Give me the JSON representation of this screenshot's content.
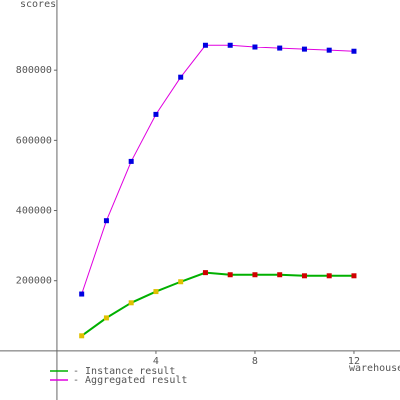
{
  "chart_data": {
    "type": "line",
    "y_label": "scores",
    "x_label": "warehouses",
    "x": [
      1,
      2,
      3,
      4,
      5,
      6,
      7,
      8,
      9,
      10,
      11,
      12
    ],
    "series": [
      {
        "name": "- Instance result",
        "color": "#00b000",
        "marker_colors": [
          "#e0c000",
          "#e0c000",
          "#e0c000",
          "#e0c000",
          "#e0c000",
          "#d00000",
          "#d00000",
          "#d00000",
          "#d00000",
          "#d00000",
          "#d00000",
          "#d00000"
        ],
        "values": [
          43000,
          94000,
          137000,
          169000,
          197000,
          223000,
          217000,
          217000,
          217000,
          214000,
          214000,
          214000
        ]
      },
      {
        "name": "- Aggregated result",
        "color": "#e000e0",
        "marker_colors": [
          "#0000e0",
          "#0000e0",
          "#0000e0",
          "#0000e0",
          "#0000e0",
          "#0000e0",
          "#0000e0",
          "#0000e0",
          "#0000e0",
          "#0000e0",
          "#0000e0",
          "#0000e0"
        ],
        "values": [
          162000,
          371000,
          540000,
          674000,
          780000,
          871000,
          871000,
          866000,
          863000,
          860000,
          857000,
          854000
        ]
      }
    ],
    "xlim": [
      -2.3,
      13.86
    ],
    "ylim": [
      -140000,
      1000000
    ],
    "xticks": [
      4,
      8,
      12
    ],
    "yticks": [
      200000,
      400000,
      600000,
      800000
    ],
    "grid": false
  }
}
